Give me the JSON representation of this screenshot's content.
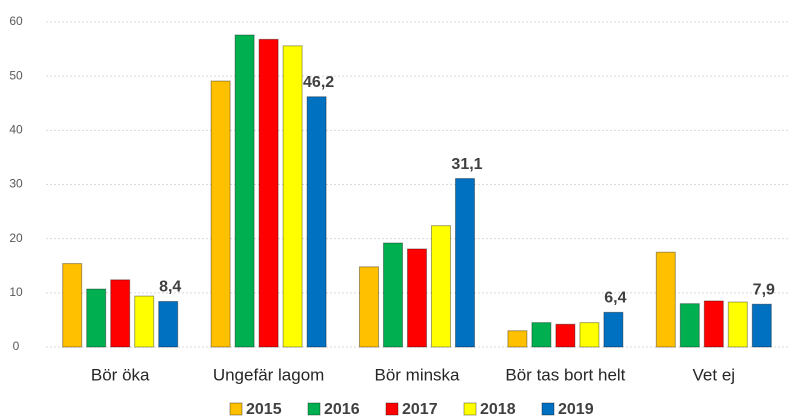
{
  "chart_data": {
    "type": "bar",
    "categories": [
      "Bör öka",
      "Ungefär lagom",
      "Bör minska",
      "Bör tas bort helt",
      "Vet ej"
    ],
    "series": [
      {
        "name": "2015",
        "color": "#ffc000",
        "values": [
          15.4,
          49.1,
          14.8,
          3.0,
          17.5
        ]
      },
      {
        "name": "2016",
        "color": "#00b050",
        "values": [
          10.7,
          57.6,
          19.2,
          4.5,
          8.0
        ]
      },
      {
        "name": "2017",
        "color": "#ff0000",
        "values": [
          12.4,
          56.8,
          18.1,
          4.2,
          8.5
        ]
      },
      {
        "name": "2018",
        "color": "#ffff00",
        "values": [
          9.4,
          55.6,
          22.4,
          4.5,
          8.3
        ]
      },
      {
        "name": "2019",
        "color": "#0070c0",
        "values": [
          8.4,
          46.2,
          31.1,
          6.4,
          7.9
        ],
        "value_labels": [
          "8,4",
          "46,2",
          "31,1",
          "6,4",
          "7,9"
        ]
      }
    ],
    "ylim": [
      0,
      60
    ],
    "yticks": [
      0,
      10,
      20,
      30,
      40,
      50,
      60
    ],
    "grid": true,
    "legend": "bottom"
  }
}
